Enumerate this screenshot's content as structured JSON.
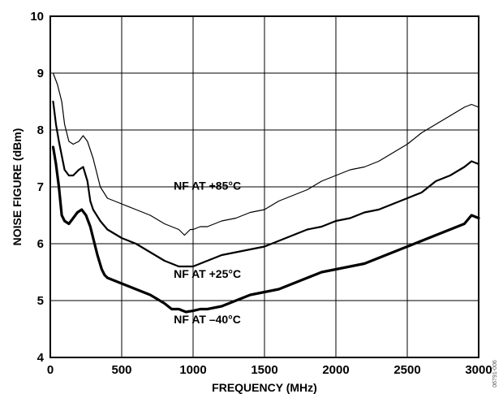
{
  "chart_data": {
    "type": "line",
    "xlabel": "FREQUENCY (MHz)",
    "ylabel": "NOISE FIGURE (dBm)",
    "xlim": [
      0,
      3000
    ],
    "ylim": [
      4,
      10
    ],
    "x_ticks": [
      0,
      500,
      1000,
      1500,
      2000,
      2500,
      3000
    ],
    "y_ticks": [
      4,
      5,
      6,
      7,
      8,
      9,
      10
    ],
    "grid": true,
    "series": [
      {
        "name": "NF AT +85°C",
        "color": "#000000",
        "weight": "thin",
        "x": [
          20,
          50,
          80,
          100,
          130,
          160,
          200,
          230,
          260,
          300,
          350,
          400,
          500,
          600,
          700,
          800,
          850,
          900,
          940,
          980,
          1000,
          1050,
          1100,
          1200,
          1300,
          1400,
          1500,
          1600,
          1700,
          1800,
          1900,
          2000,
          2100,
          2200,
          2300,
          2400,
          2500,
          2600,
          2700,
          2800,
          2900,
          2950,
          3000
        ],
        "y": [
          9.0,
          8.8,
          8.5,
          8.1,
          7.8,
          7.75,
          7.8,
          7.9,
          7.8,
          7.5,
          7.0,
          6.8,
          6.7,
          6.6,
          6.5,
          6.35,
          6.3,
          6.25,
          6.15,
          6.25,
          6.25,
          6.3,
          6.3,
          6.4,
          6.45,
          6.55,
          6.6,
          6.75,
          6.85,
          6.95,
          7.1,
          7.2,
          7.3,
          7.35,
          7.45,
          7.6,
          7.75,
          7.95,
          8.1,
          8.25,
          8.4,
          8.45,
          8.4
        ]
      },
      {
        "name": "NF AT +25°C",
        "color": "#000000",
        "weight": "medium",
        "x": [
          20,
          40,
          60,
          80,
          100,
          130,
          160,
          200,
          230,
          260,
          280,
          300,
          350,
          400,
          500,
          600,
          700,
          800,
          900,
          950,
          1000,
          1050,
          1100,
          1200,
          1300,
          1400,
          1500,
          1600,
          1700,
          1800,
          1900,
          2000,
          2100,
          2200,
          2300,
          2400,
          2500,
          2600,
          2700,
          2800,
          2900,
          2950,
          3000
        ],
        "y": [
          8.5,
          8.1,
          7.8,
          7.55,
          7.3,
          7.2,
          7.2,
          7.3,
          7.35,
          7.1,
          6.75,
          6.6,
          6.4,
          6.25,
          6.1,
          6.0,
          5.85,
          5.7,
          5.6,
          5.6,
          5.6,
          5.65,
          5.7,
          5.8,
          5.85,
          5.9,
          5.95,
          6.05,
          6.15,
          6.25,
          6.3,
          6.4,
          6.45,
          6.55,
          6.6,
          6.7,
          6.8,
          6.9,
          7.1,
          7.2,
          7.35,
          7.45,
          7.4
        ]
      },
      {
        "name": "NF AT –40°C",
        "color": "#000000",
        "weight": "thick",
        "x": [
          20,
          40,
          60,
          80,
          100,
          130,
          160,
          190,
          220,
          250,
          280,
          300,
          330,
          360,
          380,
          400,
          500,
          600,
          700,
          800,
          850,
          900,
          950,
          1000,
          1050,
          1100,
          1200,
          1300,
          1400,
          1500,
          1600,
          1700,
          1800,
          1900,
          2000,
          2100,
          2200,
          2300,
          2400,
          2500,
          2600,
          2700,
          2800,
          2900,
          2950,
          3000
        ],
        "y": [
          7.7,
          7.4,
          7.0,
          6.5,
          6.4,
          6.35,
          6.45,
          6.55,
          6.6,
          6.5,
          6.3,
          6.1,
          5.8,
          5.55,
          5.45,
          5.4,
          5.3,
          5.2,
          5.1,
          4.95,
          4.85,
          4.85,
          4.8,
          4.82,
          4.85,
          4.85,
          4.9,
          5.0,
          5.1,
          5.15,
          5.2,
          5.3,
          5.4,
          5.5,
          5.55,
          5.6,
          5.65,
          5.75,
          5.85,
          5.95,
          6.05,
          6.15,
          6.25,
          6.35,
          6.5,
          6.45
        ]
      }
    ],
    "annotations": [
      {
        "text": "NF AT +85°C",
        "x": 1100,
        "y": 6.95
      },
      {
        "text": "NF AT +25°C",
        "x": 1100,
        "y": 5.4
      },
      {
        "text": "NF AT –40°C",
        "x": 1100,
        "y": 4.6
      }
    ],
    "figure_id": "06791-006"
  }
}
